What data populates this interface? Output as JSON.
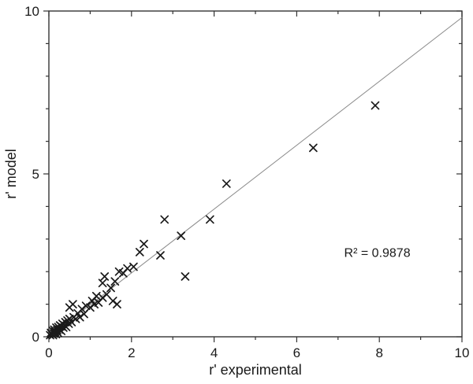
{
  "chart_data": {
    "type": "scatter",
    "title": "",
    "xlabel": "r' experimental",
    "ylabel": "r' model",
    "xlim": [
      0,
      10
    ],
    "ylim": [
      0,
      10
    ],
    "x_major_ticks": [
      0,
      2,
      4,
      6,
      8,
      10
    ],
    "y_major_ticks": [
      0,
      5,
      10
    ],
    "x_minor_step": 1,
    "y_minor_step": 1,
    "grid": false,
    "legend": "none",
    "marker": "x",
    "marker_color": "#1a1a1a",
    "axis_color": "#333333",
    "annotation": "R² = 0.9878",
    "annotation_xy": [
      7.95,
      2.45
    ],
    "trend_line": {
      "x1": 0,
      "y1": 0,
      "x2": 10,
      "y2": 9.8,
      "color": "#8a8a8a"
    },
    "points": [
      [
        0.03,
        0.05
      ],
      [
        0.05,
        0.12
      ],
      [
        0.07,
        0.08
      ],
      [
        0.1,
        0.05
      ],
      [
        0.1,
        0.18
      ],
      [
        0.12,
        0.1
      ],
      [
        0.13,
        0.22
      ],
      [
        0.15,
        0.15
      ],
      [
        0.17,
        0.08
      ],
      [
        0.18,
        0.28
      ],
      [
        0.2,
        0.2
      ],
      [
        0.22,
        0.12
      ],
      [
        0.23,
        0.3
      ],
      [
        0.25,
        0.22
      ],
      [
        0.27,
        0.35
      ],
      [
        0.3,
        0.18
      ],
      [
        0.3,
        0.32
      ],
      [
        0.33,
        0.4
      ],
      [
        0.35,
        0.28
      ],
      [
        0.38,
        0.35
      ],
      [
        0.4,
        0.45
      ],
      [
        0.42,
        0.3
      ],
      [
        0.45,
        0.5
      ],
      [
        0.48,
        0.4
      ],
      [
        0.5,
        0.55
      ],
      [
        0.5,
        0.9
      ],
      [
        0.55,
        0.45
      ],
      [
        0.58,
        1.0
      ],
      [
        0.6,
        0.6
      ],
      [
        0.65,
        0.55
      ],
      [
        0.7,
        0.72
      ],
      [
        0.75,
        0.6
      ],
      [
        0.8,
        0.85
      ],
      [
        0.85,
        0.7
      ],
      [
        0.9,
        0.95
      ],
      [
        1.0,
        0.9
      ],
      [
        1.05,
        1.1
      ],
      [
        1.1,
        1.0
      ],
      [
        1.15,
        1.25
      ],
      [
        1.2,
        1.05
      ],
      [
        1.3,
        1.2
      ],
      [
        1.3,
        1.65
      ],
      [
        1.35,
        1.85
      ],
      [
        1.4,
        1.3
      ],
      [
        1.5,
        1.5
      ],
      [
        1.55,
        1.1
      ],
      [
        1.6,
        1.7
      ],
      [
        1.65,
        1.0
      ],
      [
        1.7,
        2.0
      ],
      [
        1.8,
        1.95
      ],
      [
        1.9,
        2.1
      ],
      [
        2.05,
        2.15
      ],
      [
        2.2,
        2.6
      ],
      [
        2.3,
        2.85
      ],
      [
        2.7,
        2.5
      ],
      [
        2.8,
        3.6
      ],
      [
        3.2,
        3.1
      ],
      [
        3.3,
        1.85
      ],
      [
        3.9,
        3.6
      ],
      [
        4.3,
        4.7
      ],
      [
        6.4,
        5.8
      ],
      [
        7.9,
        7.1
      ]
    ]
  }
}
